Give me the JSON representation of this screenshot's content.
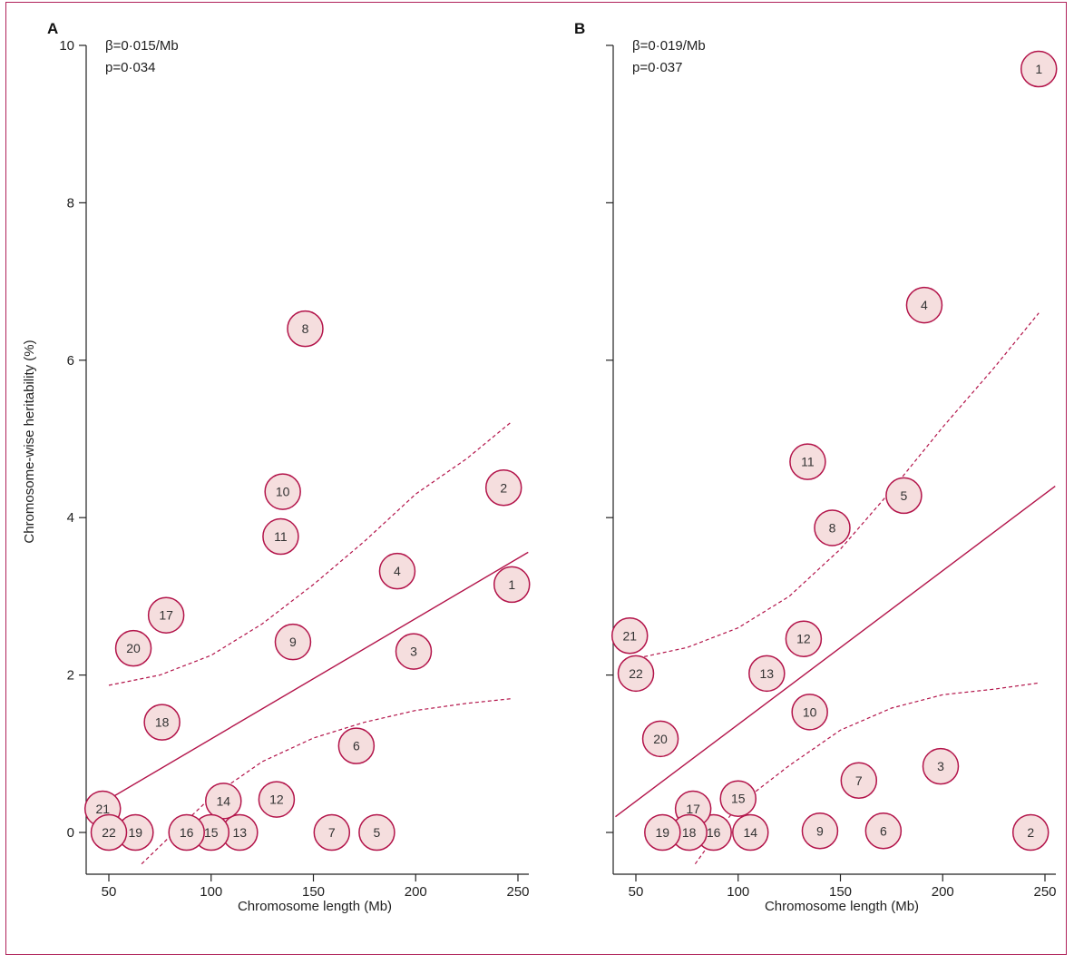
{
  "colors": {
    "accent": "#b3144a",
    "bubble_fill": "#f5dede",
    "axis": "#222222"
  },
  "chart_data": [
    {
      "type": "scatter",
      "panel": "A",
      "stats": {
        "beta": "β=0·015/Mb",
        "p": "p=0·034"
      },
      "xlabel": "Chromosome length (Mb)",
      "ylabel": "Chromosome-wise heritability (%)",
      "xlim": [
        40,
        255
      ],
      "ylim": [
        -0.4,
        10
      ],
      "xticks": [
        50,
        100,
        150,
        200,
        250
      ],
      "yticks": [
        0,
        2,
        4,
        6,
        8,
        10
      ],
      "ytick_labels": [
        "0",
        "2",
        "4",
        "6",
        "8",
        "10"
      ],
      "points": [
        {
          "label": "1",
          "x": 247,
          "y": 3.15
        },
        {
          "label": "2",
          "x": 243,
          "y": 4.38
        },
        {
          "label": "3",
          "x": 199,
          "y": 2.3
        },
        {
          "label": "4",
          "x": 191,
          "y": 3.32
        },
        {
          "label": "5",
          "x": 181,
          "y": 0.0
        },
        {
          "label": "6",
          "x": 171,
          "y": 1.1
        },
        {
          "label": "7",
          "x": 159,
          "y": 0.0
        },
        {
          "label": "8",
          "x": 146,
          "y": 6.4
        },
        {
          "label": "9",
          "x": 140,
          "y": 2.42
        },
        {
          "label": "10",
          "x": 135,
          "y": 4.33
        },
        {
          "label": "11",
          "x": 134,
          "y": 3.76
        },
        {
          "label": "12",
          "x": 132,
          "y": 0.42
        },
        {
          "label": "13",
          "x": 114,
          "y": 0.0
        },
        {
          "label": "14",
          "x": 106,
          "y": 0.4
        },
        {
          "label": "15",
          "x": 100,
          "y": 0.0
        },
        {
          "label": "16",
          "x": 88,
          "y": 0.0
        },
        {
          "label": "17",
          "x": 78,
          "y": 2.76
        },
        {
          "label": "18",
          "x": 76,
          "y": 1.4
        },
        {
          "label": "19",
          "x": 63,
          "y": 0.0
        },
        {
          "label": "20",
          "x": 62,
          "y": 2.34
        },
        {
          "label": "21",
          "x": 47,
          "y": 0.3
        },
        {
          "label": "22",
          "x": 50,
          "y": 0.0
        }
      ],
      "fit": {
        "x": [
          40,
          255
        ],
        "y": [
          0.27,
          3.56
        ]
      },
      "ci_upper": {
        "x": [
          50,
          75,
          100,
          125,
          150,
          175,
          200,
          225,
          247
        ],
        "y": [
          1.87,
          2.0,
          2.25,
          2.65,
          3.15,
          3.7,
          4.3,
          4.75,
          5.22
        ]
      },
      "ci_lower": {
        "x": [
          66,
          80,
          100,
          125,
          150,
          175,
          200,
          225,
          247
        ],
        "y": [
          -0.4,
          -0.05,
          0.45,
          0.9,
          1.2,
          1.4,
          1.55,
          1.64,
          1.7
        ]
      }
    },
    {
      "type": "scatter",
      "panel": "B",
      "stats": {
        "beta": "β=0·019/Mb",
        "p": "p=0·037"
      },
      "xlabel": "Chromosome length (Mb)",
      "ylabel": "",
      "xlim": [
        40,
        255
      ],
      "ylim": [
        -0.4,
        10
      ],
      "xticks": [
        50,
        100,
        150,
        200,
        250
      ],
      "yticks": [
        0,
        2,
        4,
        6,
        8,
        10
      ],
      "ytick_labels": [
        "",
        "",
        "",
        "",
        "",
        ""
      ],
      "points": [
        {
          "label": "1",
          "x": 247,
          "y": 9.7
        },
        {
          "label": "2",
          "x": 243,
          "y": 0.0
        },
        {
          "label": "3",
          "x": 199,
          "y": 0.84
        },
        {
          "label": "4",
          "x": 191,
          "y": 6.7
        },
        {
          "label": "5",
          "x": 181,
          "y": 4.28
        },
        {
          "label": "6",
          "x": 171,
          "y": 0.02
        },
        {
          "label": "7",
          "x": 159,
          "y": 0.66
        },
        {
          "label": "8",
          "x": 146,
          "y": 3.87
        },
        {
          "label": "9",
          "x": 140,
          "y": 0.02
        },
        {
          "label": "10",
          "x": 135,
          "y": 1.53
        },
        {
          "label": "11",
          "x": 134,
          "y": 4.71
        },
        {
          "label": "12",
          "x": 132,
          "y": 2.46
        },
        {
          "label": "13",
          "x": 114,
          "y": 2.02
        },
        {
          "label": "14",
          "x": 106,
          "y": 0.0
        },
        {
          "label": "15",
          "x": 100,
          "y": 0.43
        },
        {
          "label": "16",
          "x": 88,
          "y": 0.0
        },
        {
          "label": "17",
          "x": 78,
          "y": 0.3
        },
        {
          "label": "18",
          "x": 76,
          "y": 0.0
        },
        {
          "label": "19",
          "x": 63,
          "y": 0.0
        },
        {
          "label": "20",
          "x": 62,
          "y": 1.19
        },
        {
          "label": "21",
          "x": 47,
          "y": 2.5
        },
        {
          "label": "22",
          "x": 50,
          "y": 2.02
        }
      ],
      "fit": {
        "x": [
          40,
          255
        ],
        "y": [
          0.2,
          4.4
        ]
      },
      "ci_upper": {
        "x": [
          48,
          75,
          100,
          125,
          150,
          175,
          200,
          225,
          247
        ],
        "y": [
          2.2,
          2.35,
          2.6,
          3.0,
          3.6,
          4.35,
          5.15,
          5.9,
          6.6
        ]
      },
      "ci_lower": {
        "x": [
          79,
          90,
          100,
          125,
          150,
          175,
          200,
          225,
          247
        ],
        "y": [
          -0.4,
          0.0,
          0.35,
          0.85,
          1.3,
          1.58,
          1.75,
          1.82,
          1.9
        ]
      }
    }
  ]
}
